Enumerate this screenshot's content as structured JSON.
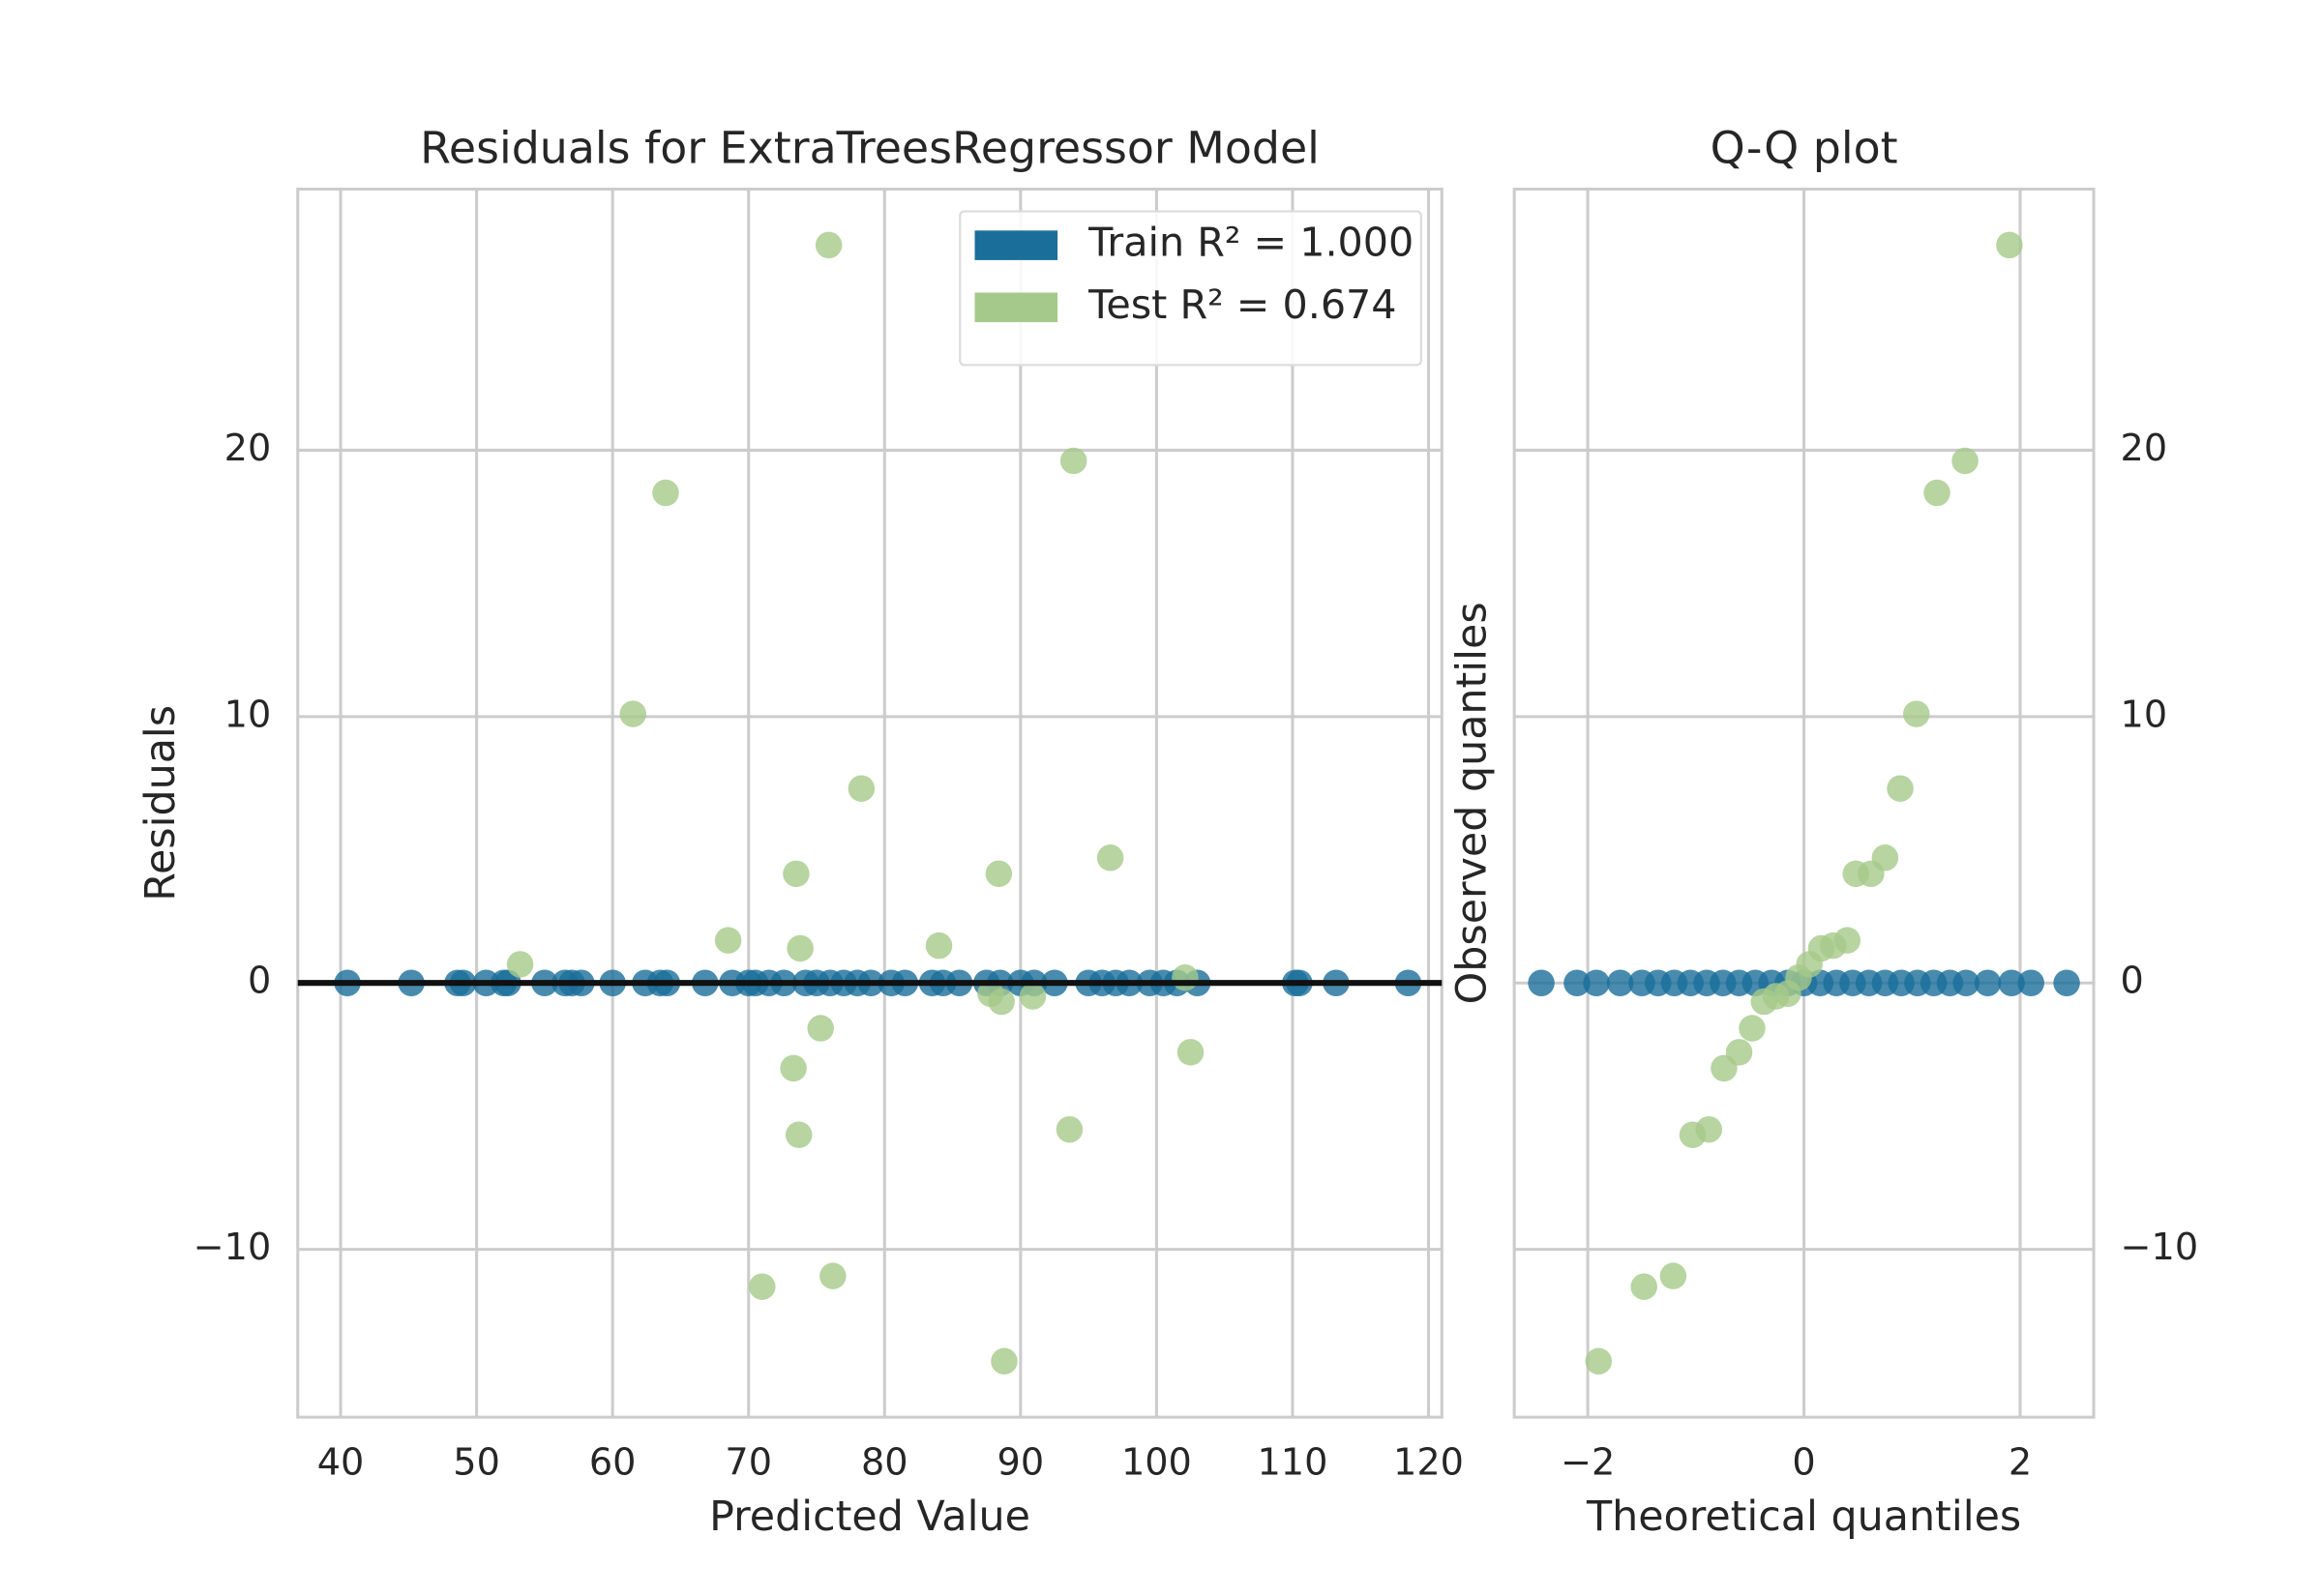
{
  "chart_data": [
    {
      "type": "scatter",
      "title": "Residuals for ExtraTreesRegressor Model",
      "x_label": "Predicted Value",
      "y_label": "Residuals",
      "xlim": [
        36.85,
        120.98
      ],
      "ylim": [
        -16.3,
        29.8
      ],
      "xticks": [
        40,
        50,
        60,
        70,
        80,
        90,
        100,
        110,
        120
      ],
      "yticks": [
        {
          "value": -10,
          "label": "−10"
        },
        0,
        10,
        20
      ],
      "grid": true,
      "legend": "upper right",
      "hline": 0,
      "y_tick_side": "left",
      "series": [
        {
          "name": "Train R² = 1.000",
          "color": "#1a6e9a",
          "x": [
            40.5,
            45.2,
            48.6,
            49,
            50.7,
            52,
            52.3,
            55,
            56.5,
            57,
            57.7,
            60,
            62.4,
            63.5,
            64,
            66.8,
            68.8,
            70,
            70.5,
            71.5,
            72.6,
            74.2,
            75,
            76,
            77,
            78,
            79,
            80.5,
            81.5,
            83.5,
            84.3,
            85.5,
            87.5,
            88.5,
            90,
            91,
            92.5,
            95,
            96,
            97,
            98,
            99.5,
            100.5,
            101.5,
            103,
            110.2,
            110.5,
            113.2,
            118.5
          ],
          "values": [
            0,
            0,
            0,
            0,
            0,
            0,
            0,
            0,
            0,
            0,
            0,
            0,
            0,
            0,
            0,
            0,
            0,
            0,
            0,
            0,
            0,
            0,
            0,
            0,
            0,
            0,
            0,
            0,
            0,
            0,
            0,
            0,
            0,
            0,
            0,
            0,
            0,
            0,
            0,
            0,
            0,
            0,
            0,
            0,
            0,
            0,
            0,
            0,
            0
          ]
        },
        {
          "name": "Test R² = 0.674",
          "color": "#a5c98a",
          "x": [
            75.9,
            63.9,
            93.9,
            61.5,
            78.3,
            73.5,
            88.4,
            96.6,
            68.5,
            73.8,
            84.0,
            53.2,
            102.1,
            87.8,
            88.6,
            90.9,
            75.3,
            73.3,
            102.5,
            73.7,
            93.6,
            71.0,
            76.2,
            88.8
          ],
          "values": [
            27.7,
            18.4,
            19.6,
            10.1,
            7.3,
            4.1,
            4.1,
            4.7,
            1.6,
            1.3,
            1.4,
            0.7,
            0.2,
            -0.4,
            -0.7,
            -0.5,
            -1.7,
            -3.2,
            -2.6,
            -5.7,
            -5.5,
            -11.4,
            -11.0,
            -14.2
          ]
        }
      ]
    },
    {
      "type": "scatter",
      "title": "Q-Q plot",
      "x_label": "Theoretical quantiles",
      "y_label": "Observed quantiles",
      "xlim": [
        -2.68,
        2.68
      ],
      "ylim": [
        -16.3,
        29.8
      ],
      "xticks": [
        {
          "value": -2,
          "label": "−2"
        },
        0,
        2
      ],
      "yticks": [
        {
          "value": -10,
          "label": "−10"
        },
        0,
        10,
        20
      ],
      "grid": true,
      "y_tick_side": "right",
      "series": [
        {
          "color": "#1a6e9a",
          "x": [
            -2.43,
            -2.1,
            -1.92,
            -1.7,
            -1.5,
            -1.35,
            -1.2,
            -1.05,
            -0.9,
            -0.75,
            -0.6,
            -0.45,
            -0.3,
            -0.15,
            0,
            0.15,
            0.3,
            0.45,
            0.6,
            0.75,
            0.9,
            1.05,
            1.2,
            1.35,
            1.5,
            1.7,
            1.92,
            2.1,
            2.43
          ],
          "values": [
            0,
            0,
            0,
            0,
            0,
            0,
            0,
            0,
            0,
            0,
            0,
            0,
            0,
            0,
            0,
            0,
            0,
            0,
            0,
            0,
            0,
            0,
            0,
            0,
            0,
            0,
            0,
            0,
            0
          ]
        },
        {
          "color": "#a5c98a",
          "x": [
            -1.9,
            -1.48,
            -1.21,
            -1.03,
            -0.88,
            -0.74,
            -0.6,
            -0.48,
            -0.37,
            -0.26,
            -0.15,
            -0.05,
            0.05,
            0.16,
            0.27,
            0.4,
            0.48,
            0.62,
            0.75,
            0.89,
            1.04,
            1.23,
            1.49,
            1.9
          ],
          "values": [
            -14.2,
            -11.4,
            -11.0,
            -5.7,
            -5.5,
            -3.2,
            -2.6,
            -1.7,
            -0.7,
            -0.5,
            -0.4,
            0.2,
            0.7,
            1.3,
            1.4,
            1.6,
            4.1,
            4.1,
            4.7,
            7.3,
            10.1,
            18.4,
            19.6,
            27.7
          ]
        }
      ]
    }
  ]
}
